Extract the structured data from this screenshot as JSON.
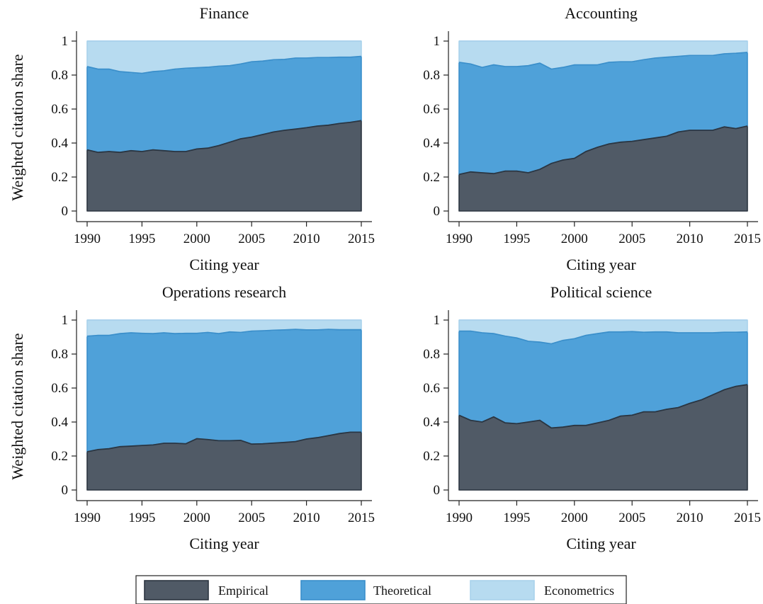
{
  "colors": {
    "empirical": "#505a66",
    "theoretical": "#4fa1d9",
    "econometrics": "#b7dbf0",
    "outline_dark": "#2c3540",
    "outline_mid": "#3a8fcb",
    "outline_light": "#a9d2ec"
  },
  "legend": {
    "placement": "bottom-center",
    "items": [
      {
        "label": "Empirical",
        "color_key": "empirical"
      },
      {
        "label": "Theoretical",
        "color_key": "theoretical"
      },
      {
        "label": "Econometrics",
        "color_key": "econometrics"
      }
    ]
  },
  "chart_data": [
    {
      "type": "area",
      "title": "Finance",
      "xlabel": "Citing year",
      "ylabel": "Weighted citation share",
      "xlim": [
        1990,
        2015
      ],
      "ylim": [
        0,
        1
      ],
      "xticks": [
        "1990",
        "1995",
        "2000",
        "2005",
        "2010",
        "2015"
      ],
      "yticks": [
        "0",
        "0.2",
        "0.4",
        "0.6",
        "0.8",
        "1"
      ],
      "stacked": true,
      "grid": false,
      "x": [
        1990,
        1991,
        1992,
        1993,
        1994,
        1995,
        1996,
        1997,
        1998,
        1999,
        2000,
        2001,
        2002,
        2003,
        2004,
        2005,
        2006,
        2007,
        2008,
        2009,
        2010,
        2011,
        2012,
        2013,
        2014,
        2015
      ],
      "series": [
        {
          "name": "Empirical",
          "values": [
            0.36,
            0.345,
            0.35,
            0.345,
            0.355,
            0.35,
            0.36,
            0.355,
            0.35,
            0.35,
            0.365,
            0.37,
            0.385,
            0.405,
            0.425,
            0.435,
            0.45,
            0.465,
            0.475,
            0.482,
            0.49,
            0.5,
            0.505,
            0.515,
            0.522,
            0.532
          ]
        },
        {
          "name": "Theoretical",
          "values": [
            0.49,
            0.49,
            0.485,
            0.475,
            0.46,
            0.46,
            0.46,
            0.47,
            0.485,
            0.49,
            0.478,
            0.476,
            0.467,
            0.45,
            0.44,
            0.443,
            0.432,
            0.425,
            0.417,
            0.418,
            0.41,
            0.403,
            0.398,
            0.39,
            0.383,
            0.378
          ]
        },
        {
          "name": "Econometrics",
          "values": [
            0.15,
            0.165,
            0.165,
            0.18,
            0.185,
            0.19,
            0.18,
            0.175,
            0.165,
            0.16,
            0.157,
            0.154,
            0.148,
            0.145,
            0.135,
            0.122,
            0.118,
            0.11,
            0.108,
            0.1,
            0.1,
            0.097,
            0.097,
            0.095,
            0.095,
            0.09
          ]
        }
      ]
    },
    {
      "type": "area",
      "title": "Accounting",
      "xlabel": "Citing year",
      "ylabel": "",
      "xlim": [
        1990,
        2015
      ],
      "ylim": [
        0,
        1
      ],
      "xticks": [
        "1990",
        "1995",
        "2000",
        "2005",
        "2010",
        "2015"
      ],
      "yticks": [
        "0",
        "0.2",
        "0.4",
        "0.6",
        "0.8",
        "1"
      ],
      "stacked": true,
      "grid": false,
      "x": [
        1990,
        1991,
        1992,
        1993,
        1994,
        1995,
        1996,
        1997,
        1998,
        1999,
        2000,
        2001,
        2002,
        2003,
        2004,
        2005,
        2006,
        2007,
        2008,
        2009,
        2010,
        2011,
        2012,
        2013,
        2014,
        2015
      ],
      "series": [
        {
          "name": "Empirical",
          "values": [
            0.215,
            0.23,
            0.225,
            0.22,
            0.235,
            0.235,
            0.225,
            0.245,
            0.28,
            0.3,
            0.31,
            0.35,
            0.375,
            0.395,
            0.405,
            0.41,
            0.42,
            0.43,
            0.44,
            0.465,
            0.475,
            0.475,
            0.475,
            0.495,
            0.485,
            0.5
          ]
        },
        {
          "name": "Theoretical",
          "values": [
            0.66,
            0.635,
            0.62,
            0.64,
            0.615,
            0.615,
            0.63,
            0.625,
            0.555,
            0.545,
            0.55,
            0.51,
            0.485,
            0.48,
            0.473,
            0.468,
            0.47,
            0.47,
            0.465,
            0.445,
            0.44,
            0.44,
            0.44,
            0.43,
            0.443,
            0.433
          ]
        },
        {
          "name": "Econometrics",
          "values": [
            0.125,
            0.135,
            0.155,
            0.14,
            0.15,
            0.15,
            0.145,
            0.13,
            0.165,
            0.155,
            0.14,
            0.14,
            0.14,
            0.125,
            0.122,
            0.122,
            0.11,
            0.1,
            0.095,
            0.09,
            0.085,
            0.085,
            0.085,
            0.075,
            0.072,
            0.067
          ]
        }
      ]
    },
    {
      "type": "area",
      "title": "Operations research",
      "xlabel": "Citing year",
      "ylabel": "Weighted citation share",
      "xlim": [
        1990,
        2015
      ],
      "ylim": [
        0,
        1
      ],
      "xticks": [
        "1990",
        "1995",
        "2000",
        "2005",
        "2010",
        "2015"
      ],
      "yticks": [
        "0",
        "0.2",
        "0.4",
        "0.6",
        "0.8",
        "1"
      ],
      "stacked": true,
      "grid": false,
      "x": [
        1990,
        1991,
        1992,
        1993,
        1994,
        1995,
        1996,
        1997,
        1998,
        1999,
        2000,
        2001,
        2002,
        2003,
        2004,
        2005,
        2006,
        2007,
        2008,
        2009,
        2010,
        2011,
        2012,
        2013,
        2014,
        2015
      ],
      "series": [
        {
          "name": "Empirical",
          "values": [
            0.225,
            0.238,
            0.243,
            0.255,
            0.258,
            0.262,
            0.265,
            0.275,
            0.275,
            0.272,
            0.302,
            0.297,
            0.29,
            0.29,
            0.292,
            0.27,
            0.272,
            0.276,
            0.28,
            0.285,
            0.3,
            0.308,
            0.32,
            0.332,
            0.34,
            0.34
          ]
        },
        {
          "name": "Theoretical",
          "values": [
            0.68,
            0.672,
            0.667,
            0.665,
            0.667,
            0.66,
            0.655,
            0.65,
            0.645,
            0.65,
            0.62,
            0.63,
            0.63,
            0.64,
            0.635,
            0.665,
            0.665,
            0.664,
            0.662,
            0.66,
            0.642,
            0.634,
            0.625,
            0.611,
            0.603,
            0.603
          ]
        },
        {
          "name": "Econometrics",
          "values": [
            0.095,
            0.09,
            0.09,
            0.08,
            0.075,
            0.078,
            0.08,
            0.075,
            0.08,
            0.078,
            0.078,
            0.073,
            0.08,
            0.07,
            0.073,
            0.065,
            0.063,
            0.06,
            0.058,
            0.055,
            0.058,
            0.058,
            0.055,
            0.057,
            0.057,
            0.057
          ]
        }
      ]
    },
    {
      "type": "area",
      "title": "Political science",
      "xlabel": "Citing year",
      "ylabel": "",
      "xlim": [
        1990,
        2015
      ],
      "ylim": [
        0,
        1
      ],
      "xticks": [
        "1990",
        "1995",
        "2000",
        "2005",
        "2010",
        "2015"
      ],
      "yticks": [
        "0",
        "0.2",
        "0.4",
        "0.6",
        "0.8",
        "1"
      ],
      "stacked": true,
      "grid": false,
      "x": [
        1990,
        1991,
        1992,
        1993,
        1994,
        1995,
        1996,
        1997,
        1998,
        1999,
        2000,
        2001,
        2002,
        2003,
        2004,
        2005,
        2006,
        2007,
        2008,
        2009,
        2010,
        2011,
        2012,
        2013,
        2014,
        2015
      ],
      "series": [
        {
          "name": "Empirical",
          "values": [
            0.44,
            0.41,
            0.4,
            0.43,
            0.395,
            0.39,
            0.4,
            0.41,
            0.365,
            0.37,
            0.38,
            0.38,
            0.395,
            0.41,
            0.435,
            0.44,
            0.46,
            0.46,
            0.475,
            0.485,
            0.51,
            0.53,
            0.56,
            0.59,
            0.61,
            0.62
          ]
        },
        {
          "name": "Theoretical",
          "values": [
            0.495,
            0.525,
            0.525,
            0.49,
            0.51,
            0.505,
            0.475,
            0.46,
            0.495,
            0.51,
            0.51,
            0.53,
            0.525,
            0.52,
            0.495,
            0.492,
            0.468,
            0.47,
            0.455,
            0.44,
            0.415,
            0.395,
            0.365,
            0.338,
            0.318,
            0.31
          ]
        },
        {
          "name": "Econometrics",
          "values": [
            0.065,
            0.065,
            0.075,
            0.08,
            0.095,
            0.105,
            0.125,
            0.13,
            0.14,
            0.12,
            0.11,
            0.09,
            0.08,
            0.07,
            0.07,
            0.068,
            0.072,
            0.07,
            0.07,
            0.075,
            0.075,
            0.075,
            0.075,
            0.072,
            0.072,
            0.07
          ]
        }
      ]
    }
  ]
}
